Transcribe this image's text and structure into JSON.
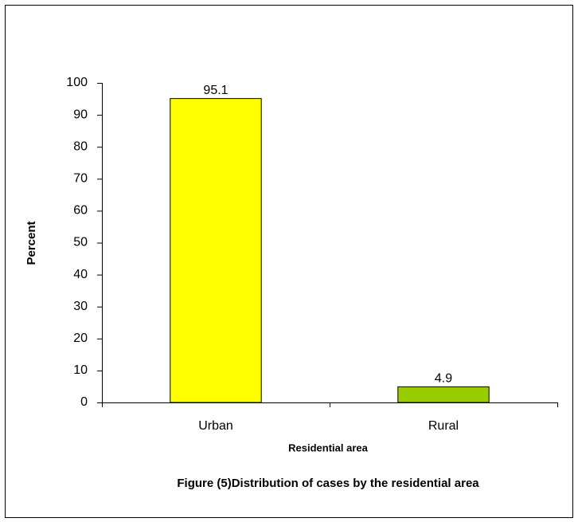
{
  "chart_data": {
    "type": "bar",
    "title": "Figure (5)Distribution of cases by the residential area",
    "x_label": "Residential area",
    "y_label": "Percent",
    "categories": [
      "Urban",
      "Rural"
    ],
    "values": [
      95.1,
      4.9
    ],
    "colors": [
      "#ffff00",
      "#99cc00"
    ],
    "ylim": [
      0,
      100
    ],
    "yticks": [
      0,
      10,
      20,
      30,
      40,
      50,
      60,
      70,
      80,
      90,
      100
    ],
    "grid": false
  }
}
